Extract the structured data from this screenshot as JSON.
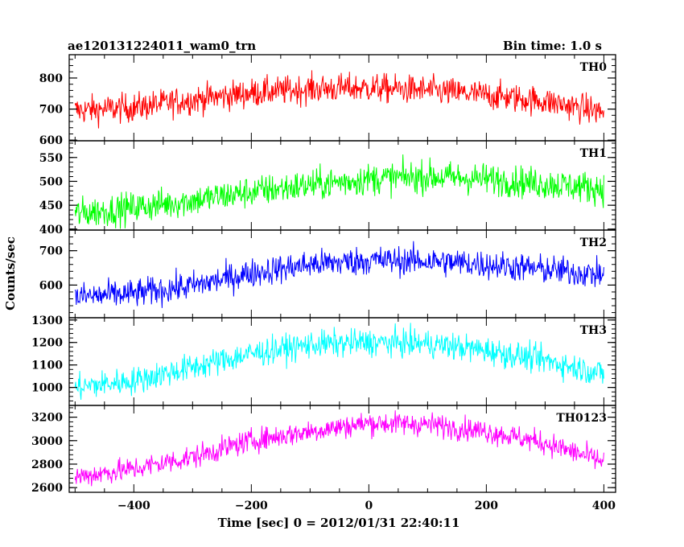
{
  "header": {
    "title": "ae120131224011_wam0_trn",
    "bin_time": "Bin time: 1.0 s"
  },
  "chart_data": {
    "type": "line",
    "xlabel": "Time [sec] 0 = 2012/01/31 22:40:11",
    "ylabel": "Counts/sec",
    "xlim": [
      -510,
      420
    ],
    "x_ticks": [
      -400,
      -200,
      0,
      200,
      400
    ],
    "x_tick_labels": [
      "−400",
      "−200",
      "0",
      "200",
      "400"
    ],
    "x_range_data": [
      -500,
      400
    ],
    "panels": [
      {
        "name": "TH0",
        "color": "#ff0000",
        "ylim": [
          598,
          875
        ],
        "y_ticks": [
          600,
          700,
          800
        ],
        "y_tick_labels": [
          "600",
          "700",
          "800"
        ],
        "trend_points": [
          [
            -500,
            695
          ],
          [
            -400,
            705
          ],
          [
            -300,
            730
          ],
          [
            -200,
            752
          ],
          [
            -100,
            765
          ],
          [
            0,
            768
          ],
          [
            100,
            760
          ],
          [
            200,
            745
          ],
          [
            300,
            725
          ],
          [
            400,
            690
          ]
        ],
        "noise_amplitude": 42
      },
      {
        "name": "TH1",
        "color": "#00ff00",
        "ylim": [
          398,
          585
        ],
        "y_ticks": [
          400,
          450,
          500,
          550
        ],
        "y_tick_labels": [
          "400",
          "450",
          "500",
          "550"
        ],
        "trend_points": [
          [
            -500,
            432
          ],
          [
            -400,
            445
          ],
          [
            -300,
            460
          ],
          [
            -200,
            478
          ],
          [
            -100,
            492
          ],
          [
            0,
            505
          ],
          [
            100,
            510
          ],
          [
            200,
            505
          ],
          [
            300,
            495
          ],
          [
            400,
            485
          ]
        ],
        "noise_amplitude": 30
      },
      {
        "name": "TH2",
        "color": "#0000ff",
        "ylim": [
          505,
          760
        ],
        "y_ticks": [
          600,
          700
        ],
        "y_tick_labels": [
          "600",
          "700"
        ],
        "trend_points": [
          [
            -500,
            565
          ],
          [
            -400,
            575
          ],
          [
            -300,
            598
          ],
          [
            -200,
            635
          ],
          [
            -100,
            660
          ],
          [
            0,
            672
          ],
          [
            100,
            670
          ],
          [
            200,
            660
          ],
          [
            300,
            645
          ],
          [
            400,
            630
          ]
        ],
        "noise_amplitude": 38
      },
      {
        "name": "TH3",
        "color": "#00ffff",
        "ylim": [
          920,
          1310
        ],
        "y_ticks": [
          1000,
          1100,
          1200,
          1300
        ],
        "y_tick_labels": [
          "1000",
          "1100",
          "1200",
          "1300"
        ],
        "trend_points": [
          [
            -500,
            1000
          ],
          [
            -400,
            1030
          ],
          [
            -300,
            1090
          ],
          [
            -200,
            1150
          ],
          [
            -100,
            1190
          ],
          [
            0,
            1200
          ],
          [
            100,
            1195
          ],
          [
            200,
            1165
          ],
          [
            300,
            1120
          ],
          [
            400,
            1060
          ]
        ],
        "noise_amplitude": 55
      },
      {
        "name": "TH0123",
        "color": "#ff00ff",
        "ylim": [
          2560,
          3300
        ],
        "y_ticks": [
          2600,
          2800,
          3000,
          3200
        ],
        "y_tick_labels": [
          "2600",
          "2800",
          "3000",
          "3200"
        ],
        "trend_points": [
          [
            -500,
            2690
          ],
          [
            -400,
            2760
          ],
          [
            -300,
            2860
          ],
          [
            -200,
            3000
          ],
          [
            -100,
            3080
          ],
          [
            0,
            3150
          ],
          [
            100,
            3140
          ],
          [
            200,
            3080
          ],
          [
            300,
            2980
          ],
          [
            400,
            2820
          ]
        ],
        "noise_amplitude": 90
      }
    ]
  }
}
